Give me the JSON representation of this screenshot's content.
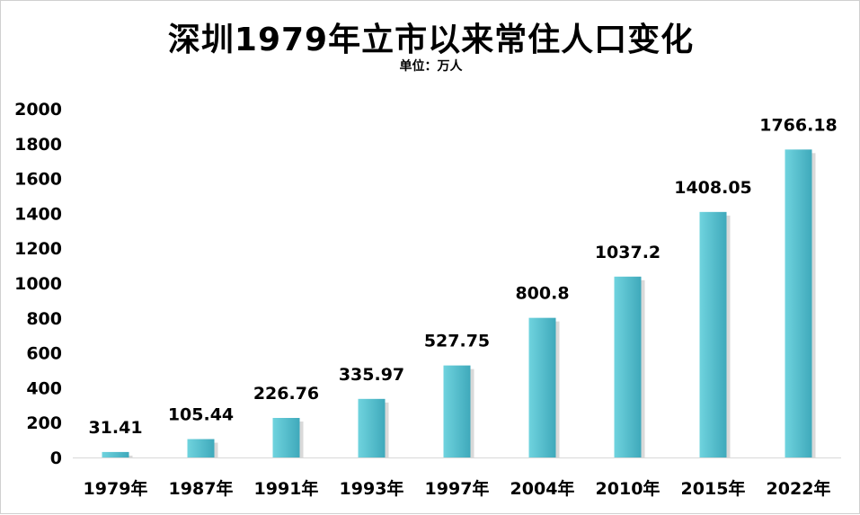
{
  "chart_data": {
    "type": "bar",
    "title": "深圳1979年立市以来常住人口变化",
    "subtitle": "单位：万人",
    "categories": [
      "1979年",
      "1987年",
      "1991年",
      "1993年",
      "1997年",
      "2004年",
      "2010年",
      "2015年",
      "2022年"
    ],
    "values": [
      31.41,
      105.44,
      226.76,
      335.97,
      527.75,
      800.8,
      1037.2,
      1408.05,
      1766.18
    ],
    "data_labels": [
      "31.41",
      "105.44",
      "226.76",
      "335.97",
      "527.75",
      "800.8",
      "1037.2",
      "1408.05",
      "1766.18"
    ],
    "y_ticks": [
      0,
      200,
      400,
      600,
      800,
      1000,
      1200,
      1400,
      1600,
      1800,
      2000
    ],
    "ylim": [
      0,
      2000
    ],
    "grid": false,
    "legend": false,
    "colors": {
      "bar_light": "#6fd3de",
      "bar_dark": "#3fa9bb",
      "shadow": "#b9b9b9",
      "text": "#000000"
    }
  }
}
